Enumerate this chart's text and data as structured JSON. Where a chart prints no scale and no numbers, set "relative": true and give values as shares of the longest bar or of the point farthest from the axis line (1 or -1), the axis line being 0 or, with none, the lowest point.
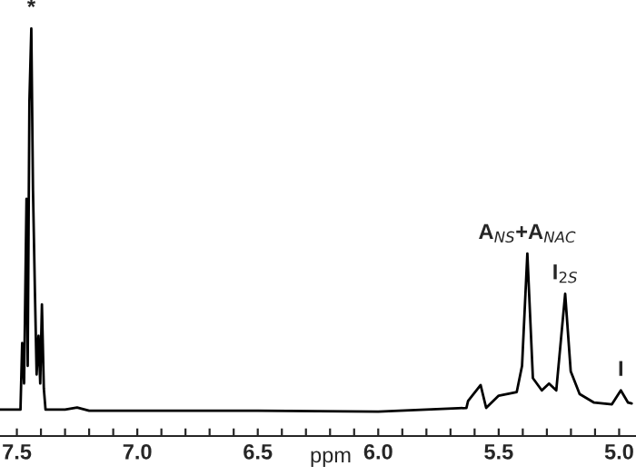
{
  "chart_data": {
    "type": "line",
    "relative": true,
    "xlabel": "ppm",
    "x": [
      7.57,
      7.485,
      7.478,
      7.47,
      7.46,
      7.455,
      7.448,
      7.44,
      7.433,
      7.425,
      7.418,
      7.41,
      7.403,
      7.396,
      7.388,
      7.381,
      7.3,
      7.25,
      7.2,
      6.5,
      6.0,
      5.634,
      5.627,
      5.575,
      5.552,
      5.5,
      5.425,
      5.403,
      5.381,
      5.358,
      5.321,
      5.291,
      5.261,
      5.224,
      5.201,
      5.164,
      5.104,
      5.03,
      4.993,
      4.963,
      4.948
    ],
    "series": [
      {
        "color": "#000000",
        "values": [
          0.065,
          0.065,
          0.228,
          0.129,
          0.582,
          0.172,
          0.819,
          1.0,
          0.603,
          0.353,
          0.151,
          0.246,
          0.129,
          0.323,
          0.116,
          0.065,
          0.065,
          0.07,
          0.062,
          0.062,
          0.06,
          0.069,
          0.086,
          0.125,
          0.069,
          0.099,
          0.108,
          0.172,
          0.448,
          0.142,
          0.112,
          0.129,
          0.112,
          0.349,
          0.159,
          0.103,
          0.082,
          0.078,
          0.112,
          0.082,
          0.08
        ]
      }
    ],
    "xlim": [
      7.57,
      4.93
    ],
    "xticks": [
      {
        "value": 7.5,
        "label": "7.5"
      },
      {
        "value": 7.4,
        "label": null
      },
      {
        "value": 7.3,
        "label": null
      },
      {
        "value": 7.2,
        "label": null
      },
      {
        "value": 7.1,
        "label": null
      },
      {
        "value": 7.0,
        "label": "7.0"
      },
      {
        "value": 6.9,
        "label": null
      },
      {
        "value": 6.8,
        "label": null
      },
      {
        "value": 6.7,
        "label": null
      },
      {
        "value": 6.6,
        "label": null
      },
      6.5,
      {
        "value": 6.4,
        "label": null
      },
      {
        "value": 6.3,
        "label": null
      },
      {
        "value": 6.2,
        "label": null
      },
      {
        "value": 6.1,
        "label": null
      },
      {
        "value": 6.0,
        "label": "6.0"
      },
      {
        "value": 5.9,
        "label": null
      },
      {
        "value": 5.8,
        "label": null
      },
      {
        "value": 5.7,
        "label": null
      },
      {
        "value": 5.6,
        "label": null
      },
      5.5,
      {
        "value": 5.4,
        "label": null
      },
      {
        "value": 5.3,
        "label": null
      },
      {
        "value": 5.2,
        "label": null
      },
      {
        "value": 5.1,
        "label": null
      },
      {
        "value": 5.0,
        "label": "5.0"
      }
    ],
    "tick_labels": "x",
    "grid": false,
    "legend": false,
    "marker": "none",
    "line_style": "solid",
    "annotations": [
      {
        "text": "*",
        "x": 7.44,
        "y": 1.0
      },
      {
        "text": "A$_{NS}$+A$_{NAC}$",
        "x": 5.381,
        "y": 0.448
      },
      {
        "text": "I$_{2S}$",
        "x": 5.224,
        "y": 0.349
      },
      {
        "text": "I",
        "x": 4.993,
        "y": 0.112
      }
    ]
  }
}
